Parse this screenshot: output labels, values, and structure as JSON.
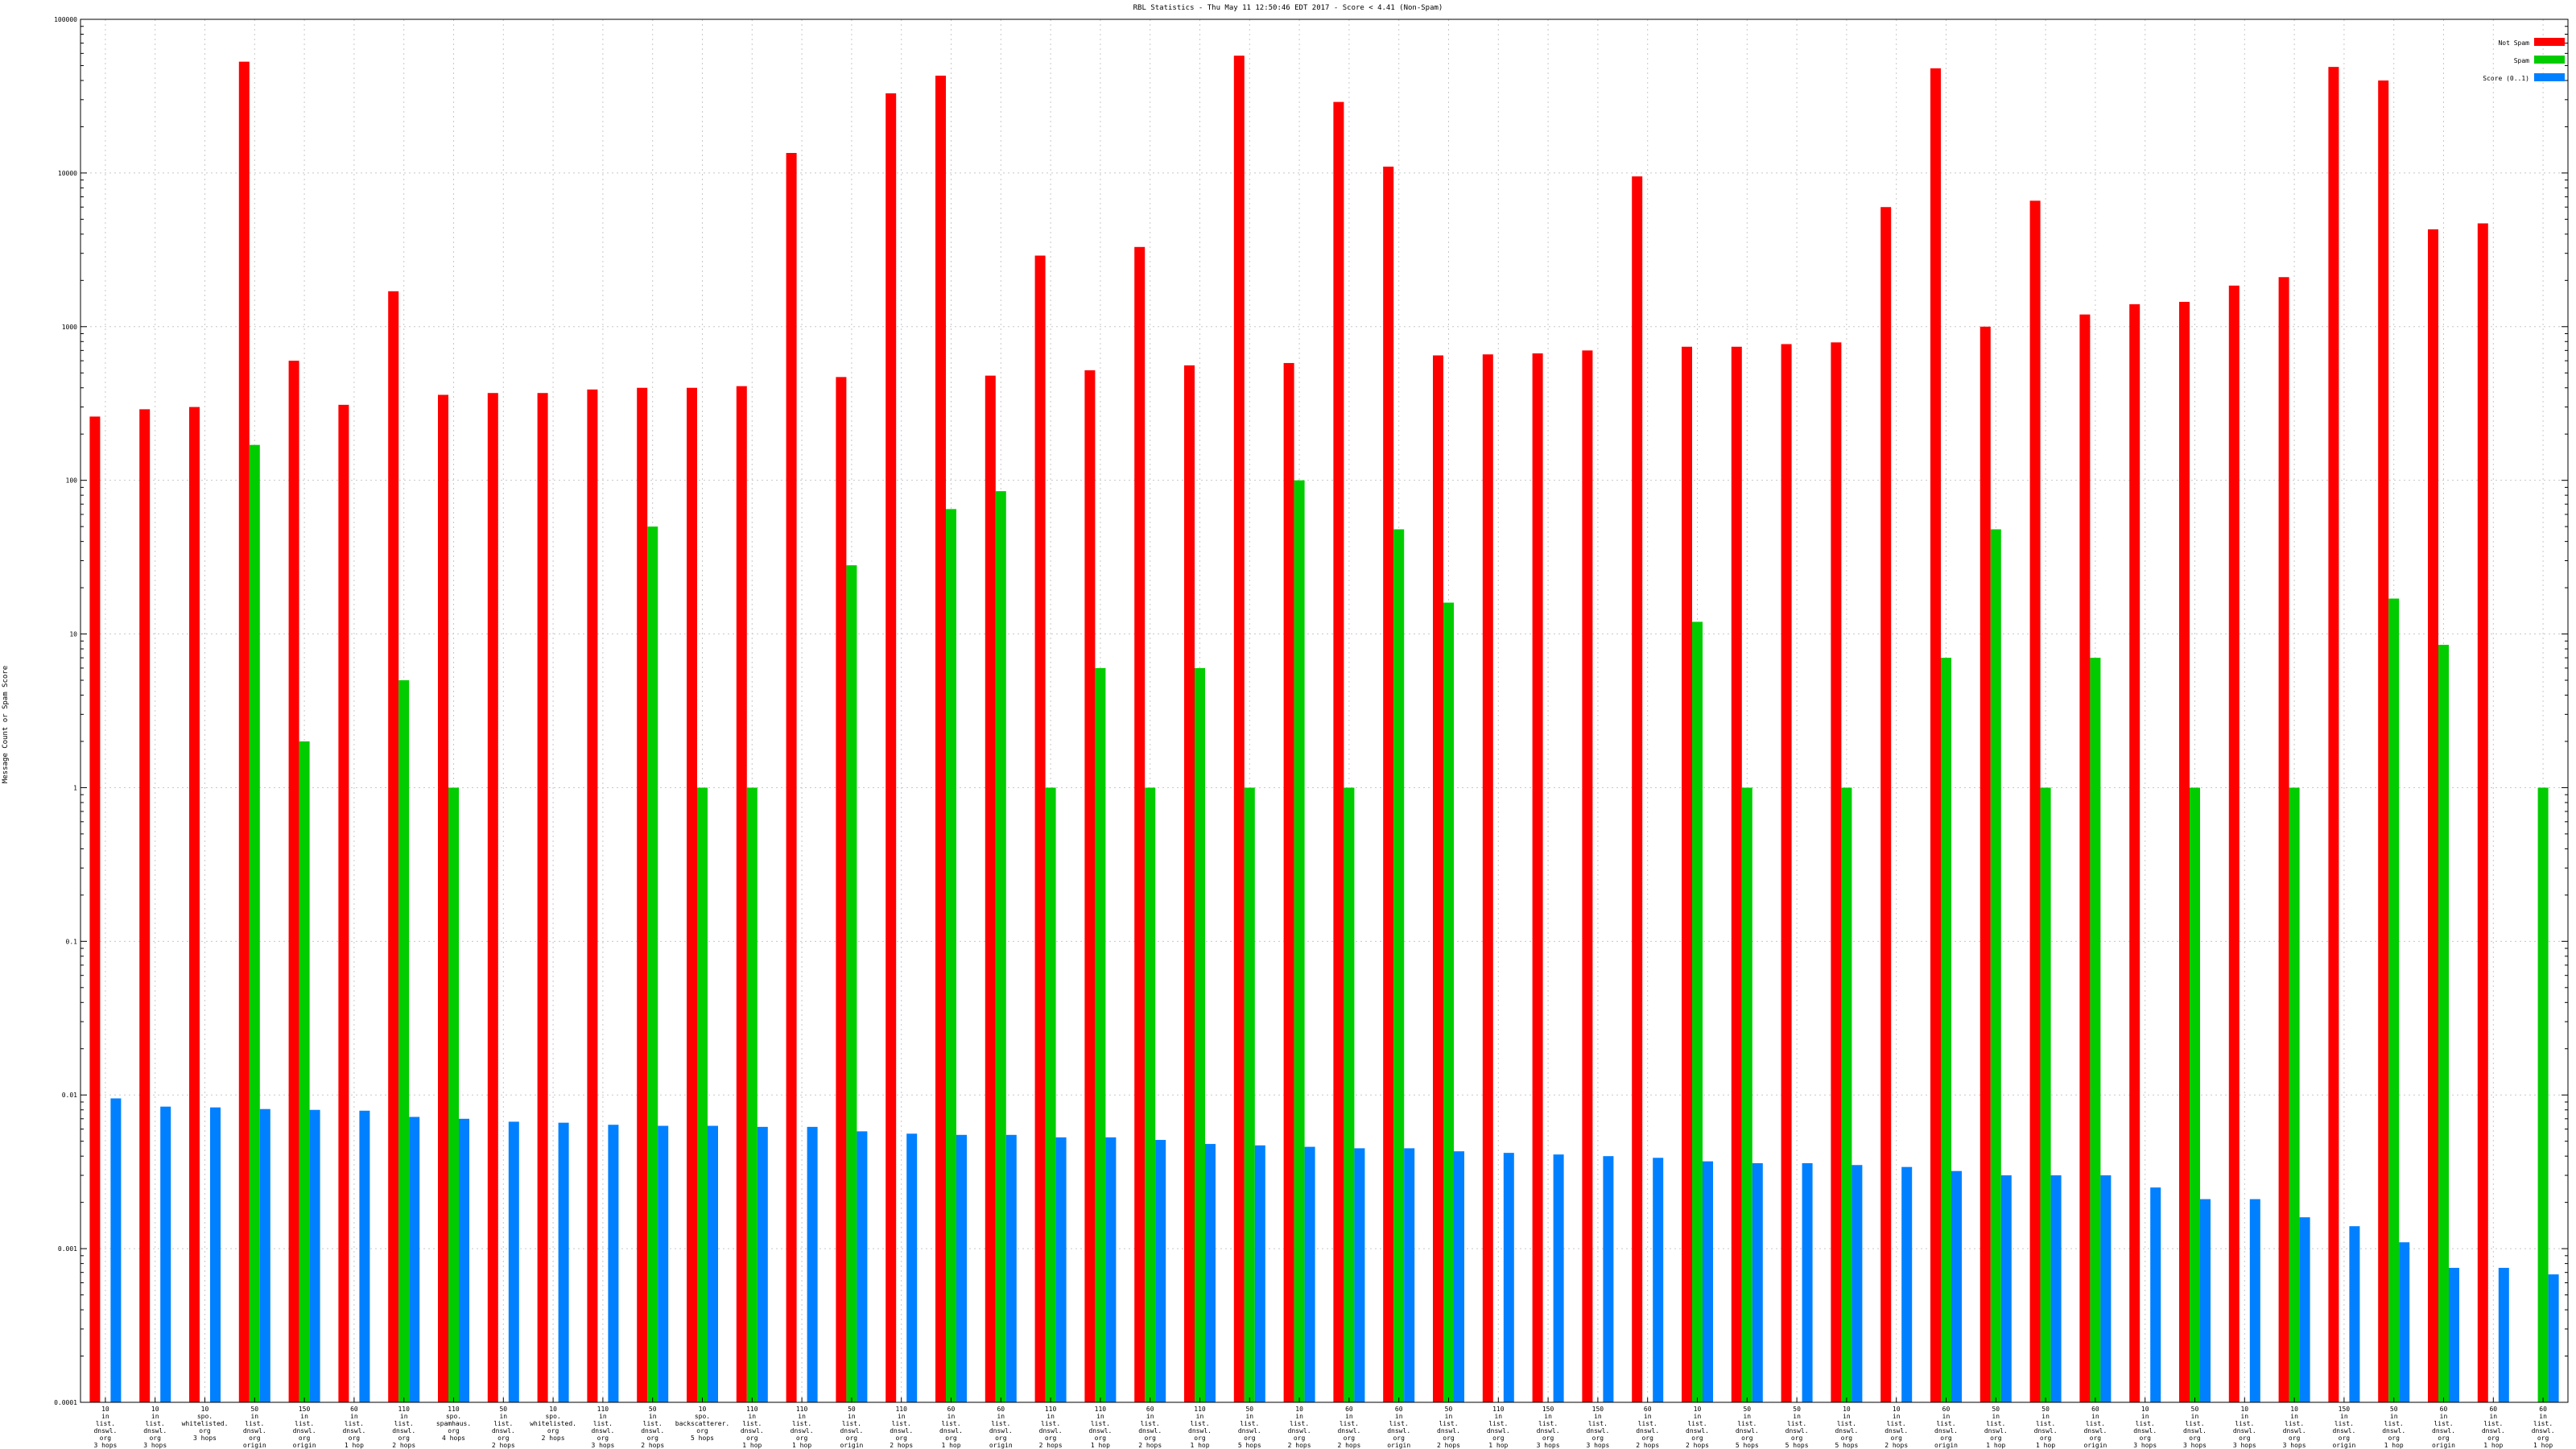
{
  "chart_data": {
    "type": "bar",
    "title": "RBL Statistics - Thu May 11 12:50:46 EDT 2017 - Score < 4.41 (Non-Spam)",
    "ylabel": "Message Count or Spam Score",
    "xlabel": "",
    "yscale": "log",
    "ylim": [
      0.0001,
      100000
    ],
    "y_ticks": [
      "0.0001",
      "0.001",
      "0.01",
      "0.1",
      "1",
      "10",
      "100",
      "1000",
      "10000",
      "100000"
    ],
    "grid": true,
    "legend_position": "top-right",
    "colors": {
      "Not Spam": "#ff0000",
      "Spam": "#00cc00",
      "Score (0..1)": "#0080ff"
    },
    "categories": [
      "10\nin\nlist.\ndnswl.\norg\n3 hops",
      "10\nin\nlist.\ndnswl.\norg\n3 hops",
      "10\nspo.\nwhitelisted.\norg\n3 hops",
      "50\nin\nlist.\ndnswl.\norg\norigin",
      "150\nin\nlist.\ndnswl.\norg\norigin",
      "60\nin\nlist.\ndnswl.\norg\n1 hop",
      "110\nin\nlist.\ndnswl.\norg\n2 hops",
      "110\nspo.\nspamhaus.\norg\n4 hops",
      "50\nin\nlist.\ndnswl.\norg\n2 hops",
      "10\nspo.\nwhitelisted.\norg\n2 hops",
      "110\nin\nlist.\ndnswl.\norg\n3 hops",
      "50\nin\nlist.\ndnswl.\norg\n2 hops",
      "10\nspo.\nbackscatterer.\norg\n5 hops",
      "110\nin\nlist.\ndnswl.\norg\n1 hop",
      "110\nin\nlist.\ndnswl.\norg\n1 hop",
      "50\nin\nlist.\ndnswl.\norg\norigin",
      "110\nin\nlist.\ndnswl.\norg\n2 hops",
      "60\nin\nlist.\ndnswl.\norg\n1 hop",
      "60\nin\nlist.\ndnswl.\norg\norigin",
      "110\nin\nlist.\ndnswl.\norg\n2 hops",
      "110\nin\nlist.\ndnswl.\norg\n1 hop",
      "60\nin\nlist.\ndnswl.\norg\n2 hops",
      "110\nin\nlist.\ndnswl.\norg\n1 hop",
      "50\nin\nlist.\ndnswl.\norg\n5 hops",
      "10\nin\nlist.\ndnswl.\norg\n2 hops",
      "60\nin\nlist.\ndnswl.\norg\n2 hops",
      "60\nin\nlist.\ndnswl.\norg\norigin",
      "50\nin\nlist.\ndnswl.\norg\n2 hops",
      "110\nin\nlist.\ndnswl.\norg\n1 hop",
      "150\nin\nlist.\ndnswl.\norg\n3 hops",
      "150\nin\nlist.\ndnswl.\norg\n3 hops",
      "60\nin\nlist.\ndnswl.\norg\n2 hops",
      "10\nin\nlist.\ndnswl.\norg\n2 hops",
      "50\nin\nlist.\ndnswl.\norg\n5 hops",
      "50\nin\nlist.\ndnswl.\norg\n5 hops",
      "10\nin\nlist.\ndnswl.\norg\n5 hops",
      "10\nin\nlist.\ndnswl.\norg\n2 hops",
      "60\nin\nlist.\ndnswl.\norg\norigin",
      "50\nin\nlist.\ndnswl.\norg\n1 hop",
      "50\nin\nlist.\ndnswl.\norg\n1 hop",
      "60\nin\nlist.\ndnswl.\norg\norigin",
      "10\nin\nlist.\ndnswl.\norg\n3 hops",
      "50\nin\nlist.\ndnswl.\norg\n3 hops",
      "10\nin\nlist.\ndnswl.\norg\n3 hops",
      "10\nin\nlist.\ndnswl.\norg\n3 hops",
      "150\nin\nlist.\ndnswl.\norg\norigin",
      "50\nin\nlist.\ndnswl.\norg\n1 hop",
      "60\nin\nlist.\ndnswl.\norg\norigin",
      "60\nin\nlist.\ndnswl.\norg\n1 hop",
      "60\nin\nlist.\ndnswl.\norg\n1 hop"
    ],
    "series": [
      {
        "name": "Not Spam",
        "values": [
          260,
          290,
          300,
          53000,
          600,
          310,
          1700,
          360,
          370,
          370,
          390,
          400,
          400,
          410,
          13500,
          470,
          33000,
          43000,
          480,
          2900,
          520,
          3300,
          560,
          58000,
          580,
          29000,
          11000,
          650,
          660,
          670,
          700,
          9500,
          740,
          740,
          770,
          790,
          6000,
          48000,
          1000,
          6600,
          1200,
          1400,
          1450,
          1850,
          2100,
          49000,
          40000,
          4300,
          4700,
          null
        ]
      },
      {
        "name": "Spam",
        "values": [
          null,
          null,
          null,
          170,
          2,
          null,
          5,
          1,
          null,
          null,
          null,
          50,
          1,
          1,
          null,
          28,
          null,
          65,
          85,
          1,
          6,
          1,
          6,
          1,
          100,
          1,
          48,
          16,
          null,
          null,
          null,
          null,
          12,
          1,
          null,
          1,
          null,
          7,
          48,
          1,
          7,
          null,
          1,
          null,
          1,
          null,
          17,
          8.5,
          null,
          1
        ]
      },
      {
        "name": "Score (0..1)",
        "values": [
          0.0095,
          0.0084,
          0.0083,
          0.0081,
          0.008,
          0.0079,
          0.0072,
          0.007,
          0.0067,
          0.0066,
          0.0064,
          0.0063,
          0.0063,
          0.0062,
          0.0062,
          0.0058,
          0.0056,
          0.0055,
          0.0055,
          0.0053,
          0.0053,
          0.0051,
          0.0048,
          0.0047,
          0.0046,
          0.0045,
          0.0045,
          0.0043,
          0.0042,
          0.0041,
          0.004,
          0.0039,
          0.0037,
          0.0036,
          0.0036,
          0.0035,
          0.0034,
          0.0032,
          0.003,
          0.003,
          0.003,
          0.0025,
          0.0021,
          0.0021,
          0.0016,
          0.0014,
          0.0011,
          0.00075,
          0.00075,
          0.00068
        ]
      }
    ]
  }
}
